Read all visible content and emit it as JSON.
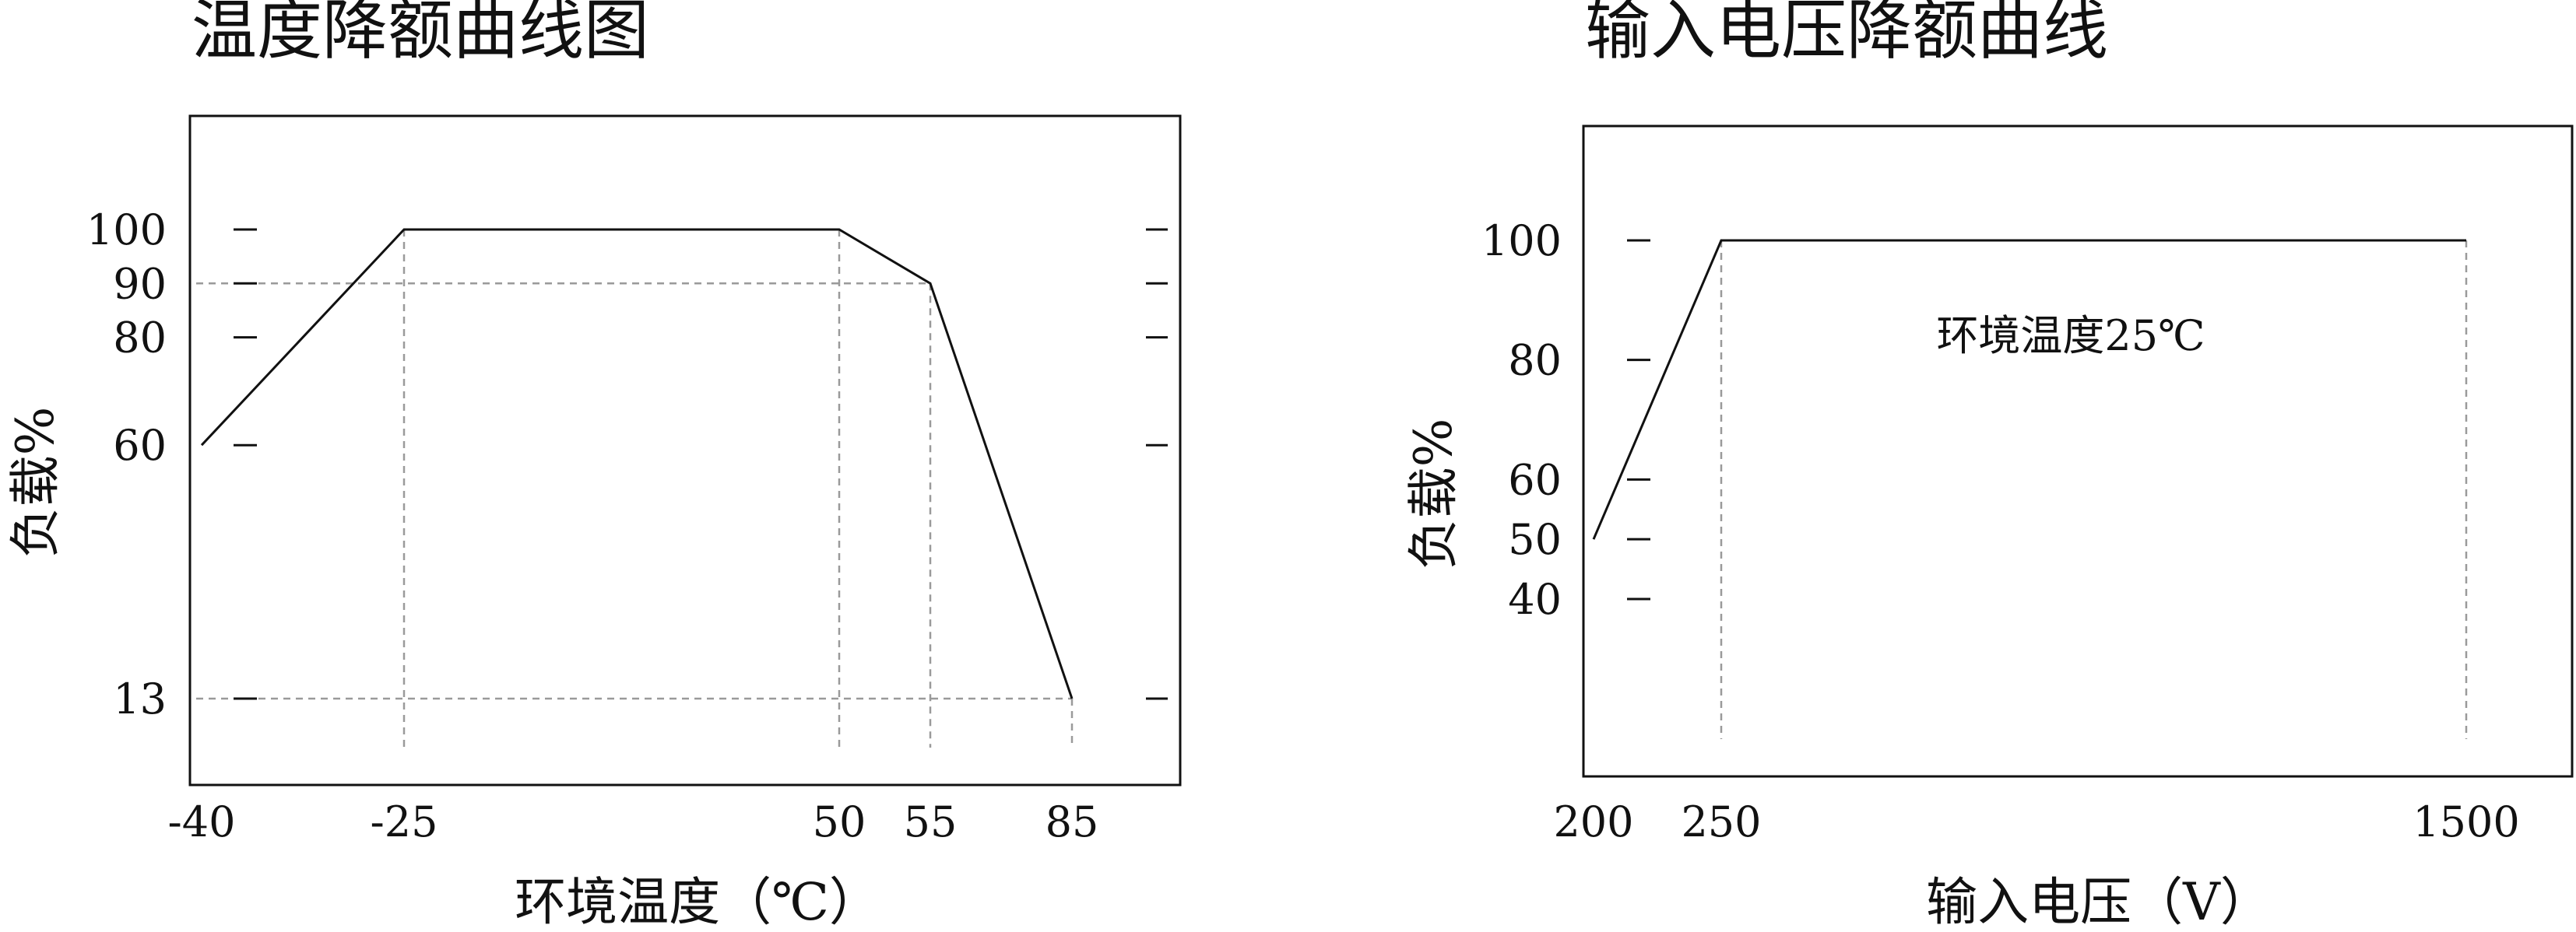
{
  "chart_data": [
    {
      "type": "line",
      "title": "温度降额曲线图",
      "xlabel": "环境温度（℃）",
      "ylabel": "负载%",
      "xlim": [
        -42,
        100
      ],
      "ylim": [
        0,
        120
      ],
      "x_ticks": [
        {
          "value": -40,
          "label": "-40"
        },
        {
          "value": -25,
          "label": "-25"
        },
        {
          "value": 50,
          "label": "50"
        },
        {
          "value": 55,
          "label": "55"
        },
        {
          "value": 85,
          "label": "85"
        }
      ],
      "y_ticks": [
        {
          "value": 100,
          "label": "100"
        },
        {
          "value": 90,
          "label": "90"
        },
        {
          "value": 80,
          "label": "80"
        },
        {
          "value": 60,
          "label": "60"
        },
        {
          "value": 13,
          "label": "13"
        }
      ],
      "x": [
        -40,
        -25,
        50,
        55,
        85
      ],
      "y": [
        60,
        100,
        100,
        90,
        13
      ],
      "guides": {
        "vertical_at_x": [
          -25,
          50,
          55,
          85
        ],
        "horizontal_at_y": [
          90,
          13
        ]
      },
      "grid": false,
      "colors": {
        "line": "#111111",
        "guide": "#9a9a9a",
        "frame": "#111111"
      }
    },
    {
      "type": "line",
      "title": "输入电压降额曲线",
      "xlabel": "输入电压（V）",
      "ylabel": "负载%",
      "annotation": "环境温度25℃",
      "xlim": [
        200,
        1500
      ],
      "ylim": [
        0,
        120
      ],
      "x_ticks": [
        {
          "value": 200,
          "label": "200"
        },
        {
          "value": 250,
          "label": "250"
        },
        {
          "value": 1500,
          "label": "1500"
        }
      ],
      "y_ticks": [
        {
          "value": 100,
          "label": "100"
        },
        {
          "value": 80,
          "label": "80"
        },
        {
          "value": 60,
          "label": "60"
        },
        {
          "value": 50,
          "label": "50"
        },
        {
          "value": 40,
          "label": "40"
        }
      ],
      "x": [
        200,
        250,
        1500
      ],
      "y": [
        50,
        100,
        100
      ],
      "guides": {
        "vertical_at_x": [
          250,
          1500
        ],
        "horizontal_at_y": []
      },
      "grid": false,
      "colors": {
        "line": "#111111",
        "guide": "#9a9a9a",
        "frame": "#111111"
      }
    }
  ]
}
